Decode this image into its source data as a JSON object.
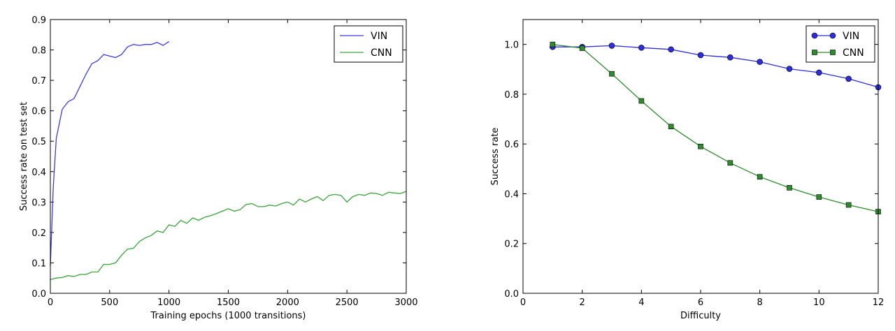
{
  "chart_data": [
    {
      "type": "line",
      "title": "",
      "xlabel": "Training epochs (1000 transitions)",
      "ylabel": "Success rate on test set",
      "xlim": [
        0,
        3000
      ],
      "ylim": [
        0,
        0.9
      ],
      "xticks": [
        0,
        500,
        1000,
        1500,
        2000,
        2500,
        3000
      ],
      "yticks": [
        0.0,
        0.1,
        0.2,
        0.3,
        0.4,
        0.5,
        0.6,
        0.7,
        0.8,
        0.9
      ],
      "ytick_labels": [
        "0.0",
        "0.1",
        "0.2",
        "0.3",
        "0.4",
        "0.5",
        "0.6",
        "0.7",
        "0.8",
        "0.9"
      ],
      "legend_position": "top-right",
      "grid": false,
      "series": [
        {
          "name": "VIN",
          "color": "#3b3bdf",
          "marker": "none",
          "x": [
            0,
            25,
            50,
            100,
            150,
            200,
            250,
            300,
            350,
            400,
            450,
            500,
            550,
            600,
            650,
            700,
            750,
            800,
            850,
            900,
            950,
            1000
          ],
          "y": [
            0.09,
            0.35,
            0.51,
            0.605,
            0.63,
            0.64,
            0.68,
            0.72,
            0.755,
            0.765,
            0.785,
            0.78,
            0.775,
            0.785,
            0.81,
            0.818,
            0.815,
            0.818,
            0.818,
            0.825,
            0.815,
            0.828
          ]
        },
        {
          "name": "CNN",
          "color": "#3aa33a",
          "marker": "none",
          "x": [
            0,
            50,
            100,
            150,
            200,
            250,
            300,
            350,
            400,
            450,
            500,
            550,
            600,
            650,
            700,
            750,
            800,
            850,
            900,
            950,
            1000,
            1050,
            1100,
            1150,
            1200,
            1250,
            1300,
            1350,
            1400,
            1450,
            1500,
            1550,
            1600,
            1650,
            1700,
            1750,
            1800,
            1850,
            1900,
            1950,
            2000,
            2050,
            2100,
            2150,
            2200,
            2250,
            2300,
            2350,
            2400,
            2450,
            2500,
            2550,
            2600,
            2650,
            2700,
            2750,
            2800,
            2850,
            2900,
            2950,
            3000
          ],
          "y": [
            0.045,
            0.05,
            0.052,
            0.058,
            0.055,
            0.062,
            0.062,
            0.07,
            0.07,
            0.095,
            0.095,
            0.1,
            0.125,
            0.145,
            0.148,
            0.17,
            0.182,
            0.19,
            0.205,
            0.2,
            0.225,
            0.22,
            0.24,
            0.23,
            0.248,
            0.24,
            0.25,
            0.255,
            0.262,
            0.27,
            0.278,
            0.27,
            0.275,
            0.292,
            0.295,
            0.285,
            0.285,
            0.29,
            0.287,
            0.295,
            0.3,
            0.29,
            0.31,
            0.3,
            0.31,
            0.318,
            0.305,
            0.322,
            0.325,
            0.322,
            0.3,
            0.318,
            0.325,
            0.322,
            0.33,
            0.328,
            0.322,
            0.332,
            0.33,
            0.328,
            0.335
          ]
        }
      ]
    },
    {
      "type": "line",
      "title": "",
      "xlabel": "Difficulty",
      "ylabel": "Success rate",
      "xlim": [
        0,
        12
      ],
      "ylim": [
        0,
        1.1
      ],
      "xticks": [
        0,
        2,
        4,
        6,
        8,
        10,
        12
      ],
      "yticks": [
        0.0,
        0.2,
        0.4,
        0.6,
        0.8,
        1.0
      ],
      "ytick_labels": [
        "0.0",
        "0.2",
        "0.4",
        "0.6",
        "0.8",
        "1.0"
      ],
      "legend_position": "top-right",
      "grid": false,
      "series": [
        {
          "name": "VIN",
          "color": "#2d2dd9",
          "marker": "circle",
          "x": [
            1,
            2,
            3,
            4,
            5,
            6,
            7,
            8,
            9,
            10,
            11,
            12
          ],
          "y": [
            0.99,
            0.99,
            0.995,
            0.987,
            0.98,
            0.957,
            0.948,
            0.93,
            0.902,
            0.887,
            0.862,
            0.828
          ]
        },
        {
          "name": "CNN",
          "color": "#2e8b2e",
          "marker": "square",
          "x": [
            1,
            2,
            3,
            4,
            5,
            6,
            7,
            8,
            9,
            10,
            11,
            12
          ],
          "y": [
            1.0,
            0.985,
            0.882,
            0.773,
            0.67,
            0.59,
            0.524,
            0.468,
            0.424,
            0.387,
            0.355,
            0.328
          ]
        }
      ]
    }
  ]
}
